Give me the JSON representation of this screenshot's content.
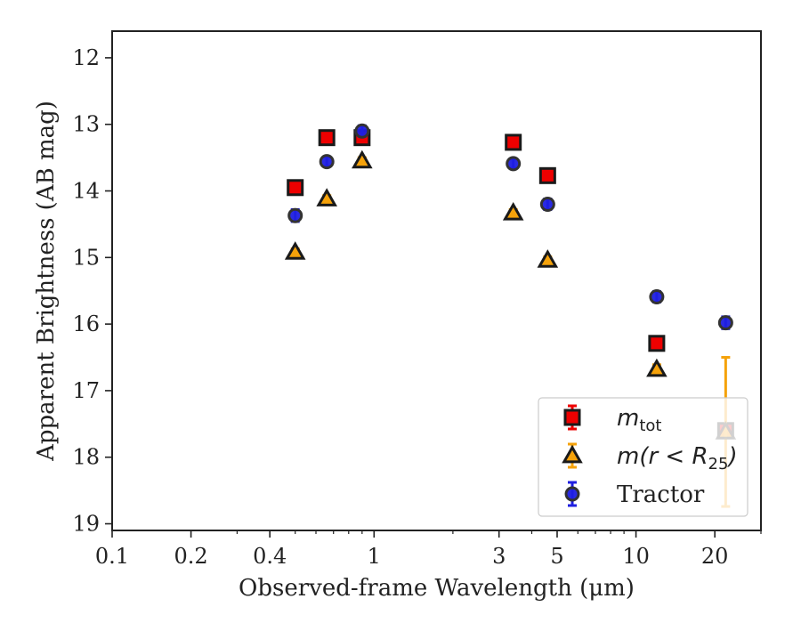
{
  "chart_data": {
    "type": "scatter",
    "xlabel": "Observed-frame Wavelength (μm)",
    "ylabel": "Apparent Brightness (AB mag)",
    "x_scale": "log",
    "xlim": [
      0.1,
      30
    ],
    "ylim": [
      19.1,
      11.6
    ],
    "y_inverted": true,
    "x_ticks": [
      {
        "value": 0.1,
        "label": "0.1"
      },
      {
        "value": 0.2,
        "label": "0.2"
      },
      {
        "value": 0.4,
        "label": "0.4"
      },
      {
        "value": 1,
        "label": "1"
      },
      {
        "value": 3,
        "label": "3"
      },
      {
        "value": 5,
        "label": "5"
      },
      {
        "value": 10,
        "label": "10"
      },
      {
        "value": 20,
        "label": "20"
      }
    ],
    "y_ticks": [
      12,
      13,
      14,
      15,
      16,
      17,
      18,
      19
    ],
    "grid": false,
    "legend_position": "bottom-right",
    "series": [
      {
        "name": "m_tot",
        "legend": {
          "main": "m",
          "sub": "tot",
          "post": ""
        },
        "marker": "square",
        "color": "#ee0000",
        "edge_color": "#1a1a1a",
        "err_color": "#ee0000",
        "points": [
          {
            "x": 0.5,
            "y": 13.95,
            "err": 0.05
          },
          {
            "x": 0.66,
            "y": 13.2,
            "err": 0.05
          },
          {
            "x": 0.9,
            "y": 13.2,
            "err": 0.05
          },
          {
            "x": 3.4,
            "y": 13.27,
            "err": 0.05
          },
          {
            "x": 4.6,
            "y": 13.77,
            "err": 0.05
          },
          {
            "x": 12.0,
            "y": 16.29,
            "err": 0.05
          },
          {
            "x": 22.0,
            "y": 17.6,
            "err": 0.05
          }
        ]
      },
      {
        "name": "m(r<R25)",
        "legend": {
          "main": "m(r < R",
          "sub": "25",
          "post": ")"
        },
        "marker": "triangle",
        "color": "#f5a20a",
        "edge_color": "#1a1a1a",
        "err_color": "#f5a20a",
        "points": [
          {
            "x": 0.5,
            "y": 14.92,
            "err": 0.05
          },
          {
            "x": 0.66,
            "y": 14.12,
            "err": 0.05
          },
          {
            "x": 0.9,
            "y": 13.55,
            "err": 0.05
          },
          {
            "x": 3.4,
            "y": 14.33,
            "err": 0.05
          },
          {
            "x": 4.6,
            "y": 15.04,
            "err": 0.05
          },
          {
            "x": 12.0,
            "y": 16.68,
            "err": 0.07
          },
          {
            "x": 22.0,
            "y": 17.62,
            "err": 1.12
          }
        ]
      },
      {
        "name": "Tractor",
        "legend": {
          "main": "Tractor",
          "sub": "",
          "post": ""
        },
        "marker": "circle",
        "color": "#1f1fe0",
        "edge_color": "#333333",
        "err_color": "#1f1fe0",
        "points": [
          {
            "x": 0.5,
            "y": 14.37,
            "err": 0.09
          },
          {
            "x": 0.66,
            "y": 13.56,
            "err": 0.07
          },
          {
            "x": 0.9,
            "y": 13.1,
            "err": 0.08
          },
          {
            "x": 3.4,
            "y": 13.59,
            "err": 0.07
          },
          {
            "x": 4.6,
            "y": 14.2,
            "err": 0.08
          },
          {
            "x": 12.0,
            "y": 15.59,
            "err": 0.08
          },
          {
            "x": 22.0,
            "y": 15.98,
            "err": 0.09
          }
        ]
      }
    ]
  }
}
